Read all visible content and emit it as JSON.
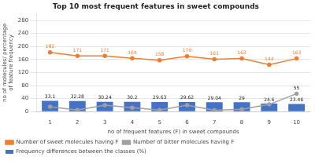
{
  "chart_data": {
    "type": "bar",
    "title": "Top 10 most frequent features in sweet compounds",
    "xlabel": "no of frequent features (F) in sweet compounds",
    "ylabel": "no of molecules/ percentage of feature frequency",
    "categories": [
      "1",
      "2",
      "3",
      "4",
      "5",
      "6",
      "7",
      "8",
      "9",
      "10"
    ],
    "series": [
      {
        "name": "Frequency differences between the classes (%)",
        "type": "bar",
        "color": "#4472c4",
        "values": [
          33.1,
          32.28,
          30.24,
          30.2,
          29.63,
          29.62,
          29.04,
          29,
          24.6,
          23.46
        ],
        "data_labels": true
      },
      {
        "name": "Number of sweet molecules having F",
        "type": "line",
        "color": "#ed7d31",
        "marker": "circle",
        "values": [
          182,
          171,
          171,
          164,
          158,
          170,
          161,
          163,
          144,
          163
        ],
        "data_labels": true
      },
      {
        "name": "Number of bitter molecules having F",
        "type": "line",
        "color": "#a0a0a0",
        "marker": "circle",
        "values": [
          15,
          5,
          20,
          12,
          5,
          20,
          4,
          7,
          22,
          55
        ],
        "value_labels": [
          null,
          null,
          null,
          null,
          null,
          null,
          null,
          null,
          null,
          "55"
        ]
      }
    ],
    "ylim": [
      0,
      300
    ],
    "yticks": [
      0,
      40,
      80,
      120,
      160,
      200,
      240,
      280
    ],
    "grid": true,
    "legend": "bottom"
  }
}
